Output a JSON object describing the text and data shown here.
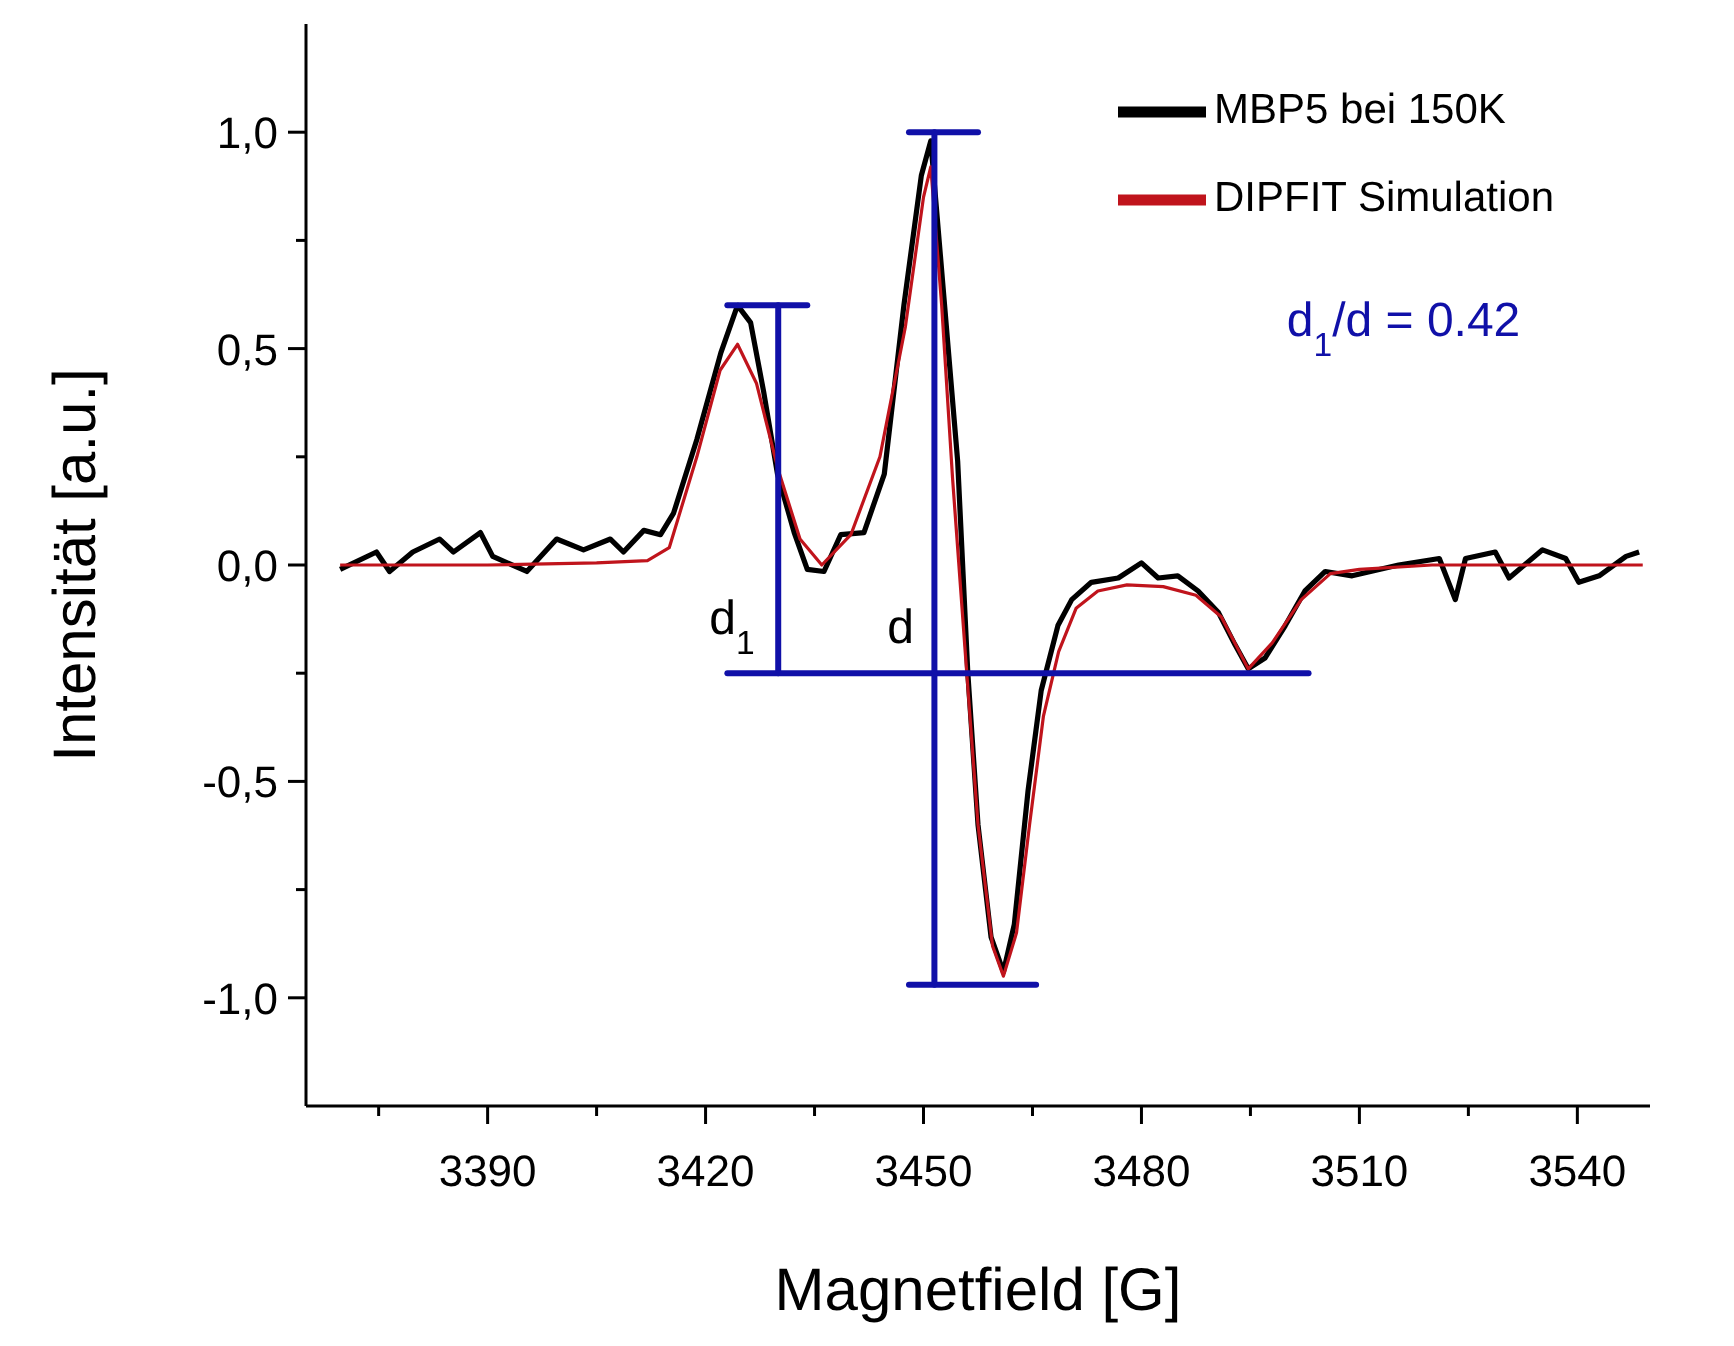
{
  "chart_data": {
    "type": "line",
    "xlabel": "Magnetfield [G]",
    "ylabel": "Intensität [a.u.]",
    "xlim": [
      3365,
      3550
    ],
    "xticks": [
      {
        "value": 3375,
        "label": null
      },
      3390,
      {
        "value": 3405,
        "label": null
      },
      3420,
      {
        "value": 3435,
        "label": null
      },
      3450,
      {
        "value": 3465,
        "label": null
      },
      3480,
      {
        "value": 3495,
        "label": null
      },
      3510,
      {
        "value": 3525,
        "label": null
      },
      3540
    ],
    "ylim": [
      -1.25,
      1.25
    ],
    "yticks": [
      {
        "value": -1,
        "label": "-1,0"
      },
      {
        "value": -0.75,
        "label": null
      },
      {
        "value": -0.5,
        "label": "-0,5"
      },
      {
        "value": -0.25,
        "label": null
      },
      {
        "value": 0,
        "label": "0,0"
      },
      {
        "value": 0.25,
        "label": null
      },
      {
        "value": 0.5,
        "label": "0,5"
      },
      {
        "value": 0.75,
        "label": null
      },
      {
        "value": 1,
        "label": "1,0"
      }
    ],
    "legend": "top right",
    "line_style": "solid",
    "annotations": [
      "d$_{1}$/d = 0.42",
      "d$_{1}$",
      "d"
    ],
    "series": [
      {
        "name": "MBP5 bei 150K",
        "color": "#000000",
        "x": [
          3369.7,
          3374.7,
          3376.5,
          3379.7,
          3383.4,
          3385.3,
          3389,
          3390.7,
          3395.4,
          3399.5,
          3403.2,
          3406.9,
          3408.7,
          3411.5,
          3413.8,
          3415.6,
          3418.8,
          3422.1,
          3424.4,
          3426.2,
          3428,
          3429.9,
          3432.2,
          3434,
          3436.3,
          3438.6,
          3441.8,
          3444.6,
          3447.3,
          3449.7,
          3451,
          3454.7,
          3456.1,
          3457.5,
          3459.3,
          3461,
          3462.5,
          3464.4,
          3466.2,
          3468.5,
          3470.4,
          3473.1,
          3476.8,
          3480,
          3482.3,
          3485,
          3487.8,
          3490.6,
          3492.9,
          3494.7,
          3497,
          3499.8,
          3502.5,
          3505.3,
          3509,
          3515.4,
          3521,
          3523.2,
          3524.6,
          3528.7,
          3530.6,
          3535.2,
          3538.4,
          3540.2,
          3543,
          3546.7,
          3548.5
        ],
        "values": [
          -0.01,
          0.03,
          -0.015,
          0.03,
          0.06,
          0.03,
          0.075,
          0.02,
          -0.015,
          0.06,
          0.035,
          0.06,
          0.03,
          0.08,
          0.07,
          0.12,
          0.29,
          0.49,
          0.6,
          0.56,
          0.4,
          0.21,
          0.075,
          -0.01,
          -0.015,
          0.07,
          0.075,
          0.21,
          0.6,
          0.9,
          0.98,
          0.24,
          -0.25,
          -0.6,
          -0.86,
          -0.94,
          -0.83,
          -0.52,
          -0.29,
          -0.14,
          -0.08,
          -0.04,
          -0.03,
          0.005,
          -0.03,
          -0.025,
          -0.06,
          -0.11,
          -0.185,
          -0.24,
          -0.215,
          -0.14,
          -0.06,
          -0.015,
          -0.025,
          0,
          0.015,
          -0.08,
          0.015,
          0.03,
          -0.03,
          0.035,
          0.015,
          -0.04,
          -0.025,
          0.02,
          0.03
        ]
      },
      {
        "name": "DIPFIT Simulation",
        "color": "#c0141c",
        "x": [
          3369.7,
          3390,
          3405,
          3412,
          3415,
          3418.8,
          3422,
          3424.4,
          3427,
          3430,
          3433,
          3436,
          3440,
          3444,
          3447.5,
          3450,
          3451,
          3452.5,
          3454,
          3456,
          3457.5,
          3459.5,
          3461,
          3462.8,
          3464.6,
          3466.5,
          3468.6,
          3471,
          3474,
          3478,
          3483,
          3487.5,
          3491,
          3494.7,
          3498,
          3502,
          3506,
          3510,
          3520,
          3549
        ],
        "values": [
          0,
          0,
          0.005,
          0.01,
          0.04,
          0.25,
          0.45,
          0.51,
          0.42,
          0.22,
          0.06,
          0,
          0.07,
          0.25,
          0.55,
          0.85,
          0.92,
          0.6,
          0.2,
          -0.26,
          -0.6,
          -0.88,
          -0.95,
          -0.85,
          -0.6,
          -0.35,
          -0.2,
          -0.1,
          -0.06,
          -0.046,
          -0.05,
          -0.07,
          -0.12,
          -0.24,
          -0.18,
          -0.08,
          -0.02,
          -0.01,
          0,
          0
        ]
      }
    ]
  }
}
